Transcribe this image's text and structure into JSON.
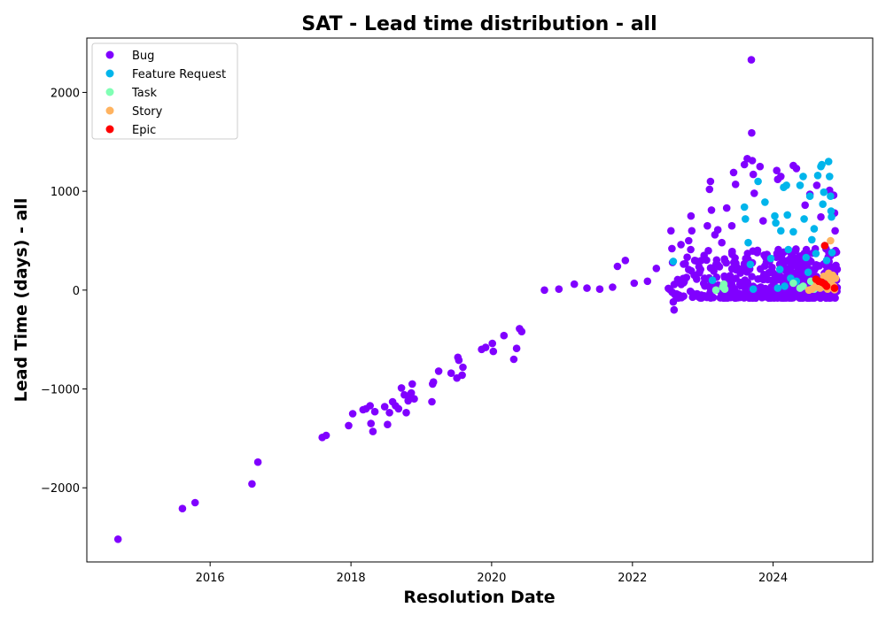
{
  "chart_data": {
    "type": "scatter",
    "title": "SAT - Lead time distribution - all",
    "xlabel": "Resolution Date",
    "ylabel": "Lead Time (days) - all",
    "x_scale": "date",
    "xlim": [
      "2014-04-01",
      "2025-06-01"
    ],
    "ylim": [
      -2750,
      2550
    ],
    "x_ticks": [
      {
        "value": "2016-01-01",
        "label": "2016"
      },
      {
        "value": "2018-01-01",
        "label": "2018"
      },
      {
        "value": "2020-01-01",
        "label": "2020"
      },
      {
        "value": "2022-01-01",
        "label": "2022"
      },
      {
        "value": "2024-01-01",
        "label": "2024"
      }
    ],
    "y_ticks": [
      {
        "value": -2000,
        "label": "−2000"
      },
      {
        "value": -1000,
        "label": "−1000"
      },
      {
        "value": 0,
        "label": "0"
      },
      {
        "value": 1000,
        "label": "1000"
      },
      {
        "value": 2000,
        "label": "2000"
      }
    ],
    "grid": false,
    "legend_position": "top-left",
    "series": [
      {
        "name": "Bug",
        "color": "#8000ff",
        "points": [
          [
            "2014-09-10",
            -2520
          ],
          [
            "2015-08-10",
            -2210
          ],
          [
            "2015-10-15",
            -2150
          ],
          [
            "2016-08-05",
            -1960
          ],
          [
            "2016-09-05",
            -1740
          ],
          [
            "2017-08-05",
            -1490
          ],
          [
            "2017-08-25",
            -1470
          ],
          [
            "2017-12-20",
            -1370
          ],
          [
            "2018-01-10",
            -1250
          ],
          [
            "2018-03-05",
            -1210
          ],
          [
            "2018-03-20",
            -1200
          ],
          [
            "2018-04-10",
            -1170
          ],
          [
            "2018-04-15",
            -1350
          ],
          [
            "2018-04-25",
            -1430
          ],
          [
            "2018-05-05",
            -1230
          ],
          [
            "2018-06-25",
            -1180
          ],
          [
            "2018-07-10",
            -1360
          ],
          [
            "2018-07-20",
            -1240
          ],
          [
            "2018-08-05",
            -1130
          ],
          [
            "2018-08-20",
            -1170
          ],
          [
            "2018-09-05",
            -1200
          ],
          [
            "2018-09-20",
            -990
          ],
          [
            "2018-10-05",
            -1060
          ],
          [
            "2018-10-15",
            -1240
          ],
          [
            "2018-10-25",
            -1120
          ],
          [
            "2018-11-05",
            -1090
          ],
          [
            "2018-11-10",
            -1040
          ],
          [
            "2018-11-15",
            -950
          ],
          [
            "2018-11-25",
            -1100
          ],
          [
            "2019-02-25",
            -1130
          ],
          [
            "2019-03-01",
            -950
          ],
          [
            "2019-03-05",
            -930
          ],
          [
            "2019-04-01",
            -820
          ],
          [
            "2019-06-05",
            -840
          ],
          [
            "2019-07-05",
            -890
          ],
          [
            "2019-07-10",
            -680
          ],
          [
            "2019-07-15",
            -710
          ],
          [
            "2019-08-01",
            -860
          ],
          [
            "2019-08-05",
            -780
          ],
          [
            "2019-11-10",
            -600
          ],
          [
            "2019-12-01",
            -580
          ],
          [
            "2020-01-05",
            -540
          ],
          [
            "2020-01-10",
            -620
          ],
          [
            "2020-03-05",
            -460
          ],
          [
            "2020-04-25",
            -700
          ],
          [
            "2020-05-10",
            -590
          ],
          [
            "2020-05-25",
            -390
          ],
          [
            "2020-06-05",
            -420
          ],
          [
            "2020-10-01",
            0
          ],
          [
            "2020-12-15",
            10
          ],
          [
            "2021-03-05",
            60
          ],
          [
            "2021-05-10",
            20
          ],
          [
            "2021-07-15",
            10
          ],
          [
            "2021-09-20",
            30
          ],
          [
            "2021-10-15",
            240
          ],
          [
            "2021-11-25",
            300
          ],
          [
            "2022-01-10",
            70
          ],
          [
            "2022-03-20",
            90
          ],
          [
            "2022-05-05",
            220
          ],
          [
            "2022-07-15",
            5
          ],
          [
            "2022-07-20",
            600
          ],
          [
            "2022-07-25",
            420
          ],
          [
            "2022-07-28",
            280
          ],
          [
            "2022-08-01",
            -120
          ],
          [
            "2022-08-05",
            -200
          ],
          [
            "2022-09-10",
            460
          ],
          [
            "2022-10-20",
            500
          ],
          [
            "2022-11-01",
            750
          ],
          [
            "2022-11-05",
            600
          ],
          [
            "2022-11-20",
            300
          ],
          [
            "2022-12-15",
            180
          ],
          [
            "2023-01-10",
            120
          ],
          [
            "2023-01-25",
            650
          ],
          [
            "2023-02-05",
            1020
          ],
          [
            "2023-02-10",
            1100
          ],
          [
            "2023-02-15",
            810
          ],
          [
            "2023-03-05",
            560
          ],
          [
            "2023-03-20",
            610
          ],
          [
            "2023-04-10",
            480
          ],
          [
            "2023-05-05",
            830
          ],
          [
            "2023-06-01",
            650
          ],
          [
            "2023-06-10",
            1190
          ],
          [
            "2023-06-20",
            1070
          ],
          [
            "2023-08-05",
            1270
          ],
          [
            "2023-08-20",
            1330
          ],
          [
            "2023-09-10",
            2330
          ],
          [
            "2023-09-12",
            1590
          ],
          [
            "2023-09-15",
            1310
          ],
          [
            "2023-09-20",
            1170
          ],
          [
            "2023-09-25",
            980
          ],
          [
            "2023-10-25",
            1250
          ],
          [
            "2023-11-10",
            700
          ],
          [
            "2024-01-20",
            1210
          ],
          [
            "2024-01-25",
            1120
          ],
          [
            "2024-02-10",
            1150
          ],
          [
            "2024-04-15",
            1260
          ],
          [
            "2024-05-01",
            1230
          ],
          [
            "2024-06-15",
            860
          ],
          [
            "2024-07-10",
            970
          ],
          [
            "2024-08-15",
            1060
          ],
          [
            "2024-09-05",
            740
          ],
          [
            "2024-10-20",
            1010
          ],
          [
            "2024-11-10",
            960
          ],
          [
            "2024-11-15",
            780
          ],
          [
            "2024-11-18",
            600
          ],
          [
            "2024-11-20",
            400
          ],
          [
            "2024-11-22",
            250
          ],
          [
            "2024-11-25",
            100
          ]
        ],
        "dense_region": {
          "x_range": [
            "2022-06-15",
            "2024-12-01"
          ],
          "y_range": [
            -80,
            420
          ],
          "count": 520
        }
      },
      {
        "name": "Feature Request",
        "color": "#00b5eb",
        "points": [
          [
            "2022-08-01",
            290
          ],
          [
            "2023-02-20",
            100
          ],
          [
            "2023-08-05",
            840
          ],
          [
            "2023-08-10",
            720
          ],
          [
            "2023-08-25",
            480
          ],
          [
            "2023-09-05",
            260
          ],
          [
            "2023-09-20",
            10
          ],
          [
            "2023-10-15",
            1100
          ],
          [
            "2023-11-20",
            890
          ],
          [
            "2024-01-10",
            750
          ],
          [
            "2024-01-15",
            680
          ],
          [
            "2024-02-10",
            600
          ],
          [
            "2024-02-25",
            1040
          ],
          [
            "2024-03-10",
            1060
          ],
          [
            "2024-03-15",
            760
          ],
          [
            "2024-03-20",
            410
          ],
          [
            "2024-04-15",
            590
          ],
          [
            "2024-05-20",
            1060
          ],
          [
            "2024-06-05",
            1150
          ],
          [
            "2024-06-10",
            720
          ],
          [
            "2024-07-10",
            950
          ],
          [
            "2024-07-20",
            510
          ],
          [
            "2024-08-20",
            1160
          ],
          [
            "2024-09-05",
            1250
          ],
          [
            "2024-09-10",
            1270
          ],
          [
            "2024-09-15",
            870
          ],
          [
            "2024-09-20",
            990
          ],
          [
            "2024-10-15",
            1300
          ],
          [
            "2024-10-20",
            1150
          ],
          [
            "2024-10-25",
            950
          ],
          [
            "2024-10-28",
            800
          ],
          [
            "2024-10-30",
            740
          ],
          [
            "2024-11-02",
            380
          ],
          [
            "2023-12-20",
            320
          ],
          [
            "2024-02-05",
            210
          ],
          [
            "2024-04-01",
            120
          ],
          [
            "2024-05-01",
            90
          ],
          [
            "2024-06-20",
            330
          ],
          [
            "2024-08-01",
            620
          ],
          [
            "2024-09-25",
            450
          ],
          [
            "2024-10-05",
            300
          ],
          [
            "2024-01-25",
            20
          ],
          [
            "2024-03-01",
            40
          ],
          [
            "2024-07-01",
            180
          ],
          [
            "2024-08-10",
            370
          ]
        ]
      },
      {
        "name": "Task",
        "color": "#80ffb4",
        "points": [
          [
            "2023-03-10",
            0
          ],
          [
            "2023-04-15",
            30
          ],
          [
            "2023-04-20",
            60
          ],
          [
            "2023-04-25",
            10
          ],
          [
            "2024-04-15",
            70
          ],
          [
            "2024-05-20",
            20
          ],
          [
            "2024-06-05",
            40
          ],
          [
            "2024-07-15",
            90
          ],
          [
            "2024-08-01",
            10
          ],
          [
            "2024-08-20",
            50
          ],
          [
            "2024-09-10",
            30
          ]
        ]
      },
      {
        "name": "Story",
        "color": "#ffb360",
        "points": [
          [
            "2024-07-05",
            0
          ],
          [
            "2024-07-20",
            10
          ],
          [
            "2024-08-05",
            30
          ],
          [
            "2024-08-15",
            60
          ],
          [
            "2024-09-01",
            20
          ],
          [
            "2024-09-10",
            90
          ],
          [
            "2024-09-20",
            140
          ],
          [
            "2024-10-01",
            50
          ],
          [
            "2024-10-10",
            10
          ],
          [
            "2024-10-15",
            170
          ],
          [
            "2024-10-20",
            110
          ],
          [
            "2024-10-25",
            500
          ],
          [
            "2024-10-28",
            80
          ],
          [
            "2024-11-01",
            30
          ],
          [
            "2024-11-05",
            150
          ],
          [
            "2024-11-10",
            40
          ],
          [
            "2024-11-15",
            5
          ],
          [
            "2024-11-20",
            120
          ]
        ]
      },
      {
        "name": "Epic",
        "color": "#ff0000",
        "points": [
          [
            "2024-08-10",
            110
          ],
          [
            "2024-08-25",
            90
          ],
          [
            "2024-09-10",
            80
          ],
          [
            "2024-09-25",
            60
          ],
          [
            "2024-09-25",
            450
          ],
          [
            "2024-10-05",
            40
          ],
          [
            "2024-11-15",
            20
          ]
        ]
      }
    ]
  }
}
